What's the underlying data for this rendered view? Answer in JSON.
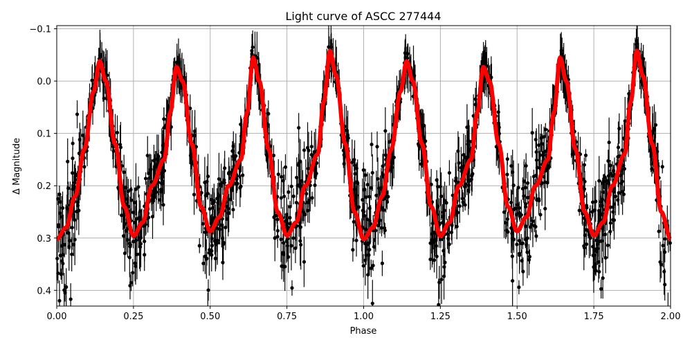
{
  "chart_data": {
    "type": "scatter",
    "title": "Light curve of ASCC 277444",
    "xlabel": "Phase",
    "ylabel": "Δ Magnitude",
    "xlim": [
      0,
      2
    ],
    "ylim": [
      -0.106,
      0.43
    ],
    "y_inverted": true,
    "grid": true,
    "x_ticks": [
      "0.00",
      "0.25",
      "0.50",
      "0.75",
      "1.00",
      "1.25",
      "1.50",
      "1.75",
      "2.00"
    ],
    "x_tick_values": [
      0,
      0.25,
      0.5,
      0.75,
      1.0,
      1.25,
      1.5,
      1.75,
      2.0
    ],
    "y_ticks": [
      "−0.1",
      "0.0",
      "0.1",
      "0.2",
      "0.3",
      "0.4"
    ],
    "y_tick_values": [
      -0.1,
      0.0,
      0.1,
      0.2,
      0.3,
      0.4
    ],
    "colors": {
      "observations": "#000000",
      "model": "#ff0000",
      "grid": "#b0b0b0"
    },
    "model_cycle": {
      "phase": [
        0.0,
        0.03,
        0.06,
        0.09,
        0.12,
        0.14,
        0.16,
        0.19,
        0.22,
        0.25,
        0.28,
        0.31,
        0.35,
        0.37,
        0.39,
        0.41,
        0.44,
        0.47,
        0.5,
        0.53,
        0.56,
        0.6,
        0.62,
        0.64,
        0.66,
        0.69,
        0.72,
        0.75,
        0.78,
        0.81,
        0.85,
        0.87,
        0.89,
        0.91,
        0.94,
        0.97,
        1.0
      ],
      "delta_mag": [
        0.302,
        0.28,
        0.22,
        0.13,
        0.02,
        -0.038,
        0.0,
        0.12,
        0.24,
        0.296,
        0.27,
        0.2,
        0.15,
        0.06,
        -0.027,
        0.0,
        0.12,
        0.24,
        0.287,
        0.26,
        0.2,
        0.15,
        0.06,
        -0.045,
        0.0,
        0.13,
        0.25,
        0.295,
        0.27,
        0.2,
        0.14,
        0.04,
        -0.058,
        -0.01,
        0.12,
        0.25,
        0.302
      ]
    }
  }
}
